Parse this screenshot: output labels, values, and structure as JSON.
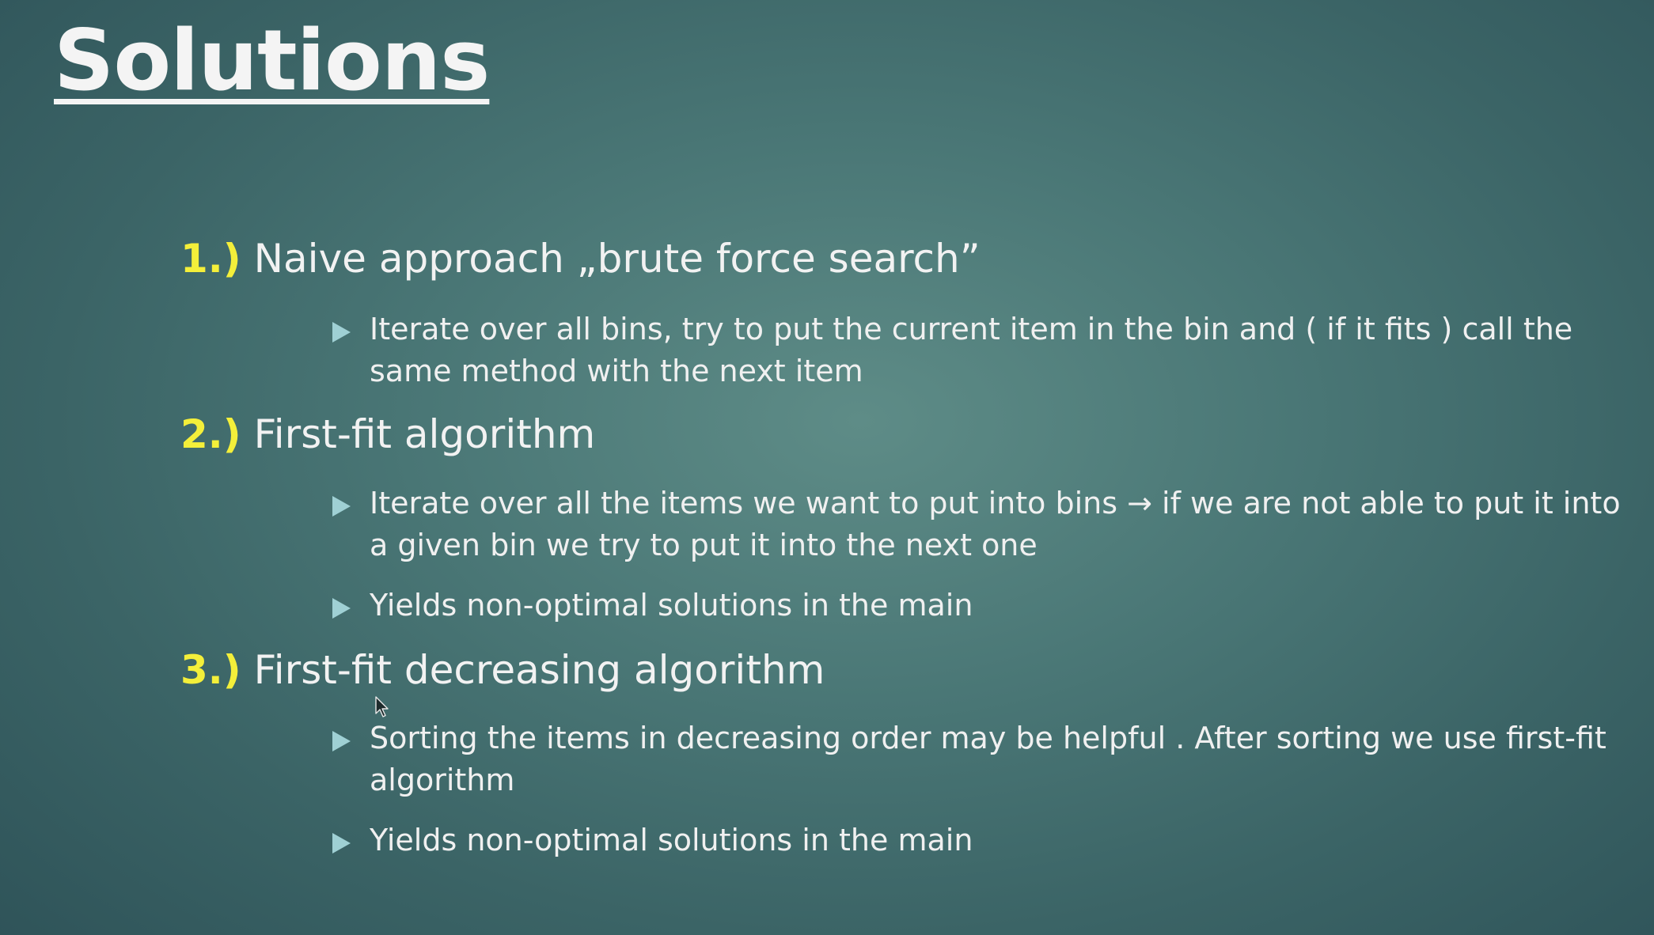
{
  "slide": {
    "title": "Solutions",
    "sections": [
      {
        "number": "1.)",
        "heading": "Naive approach „brute force search”",
        "bullets": [
          "Iterate over all bins, try to put the current item in the bin and  ( if it fits ) call the same method with the next item"
        ]
      },
      {
        "number": "2.)",
        "heading": "First-fit algorithm",
        "bullets": [
          "Iterate over all the items we want to put into bins → if we are not able to put it into a given bin we try to put it into the next one",
          "Yields non-optimal solutions in the main"
        ]
      },
      {
        "number": "3.)",
        "heading": "First-fit decreasing algorithm",
        "bullets": [
          "Sorting the items in decreasing order may be helpful . After sorting we use first-fit algorithm",
          "Yields non-optimal solutions in the main"
        ]
      }
    ]
  },
  "colors": {
    "background_center": "#5e8c87",
    "background_edge": "#2d5157",
    "title": "#f4f4f4",
    "number": "#f4ef3a",
    "text": "#f2f2f2",
    "bullet_marker": "#9fd0d4"
  },
  "icons": {
    "bullet": "triangle-right-icon",
    "pointer": "mouse-cursor-icon"
  }
}
